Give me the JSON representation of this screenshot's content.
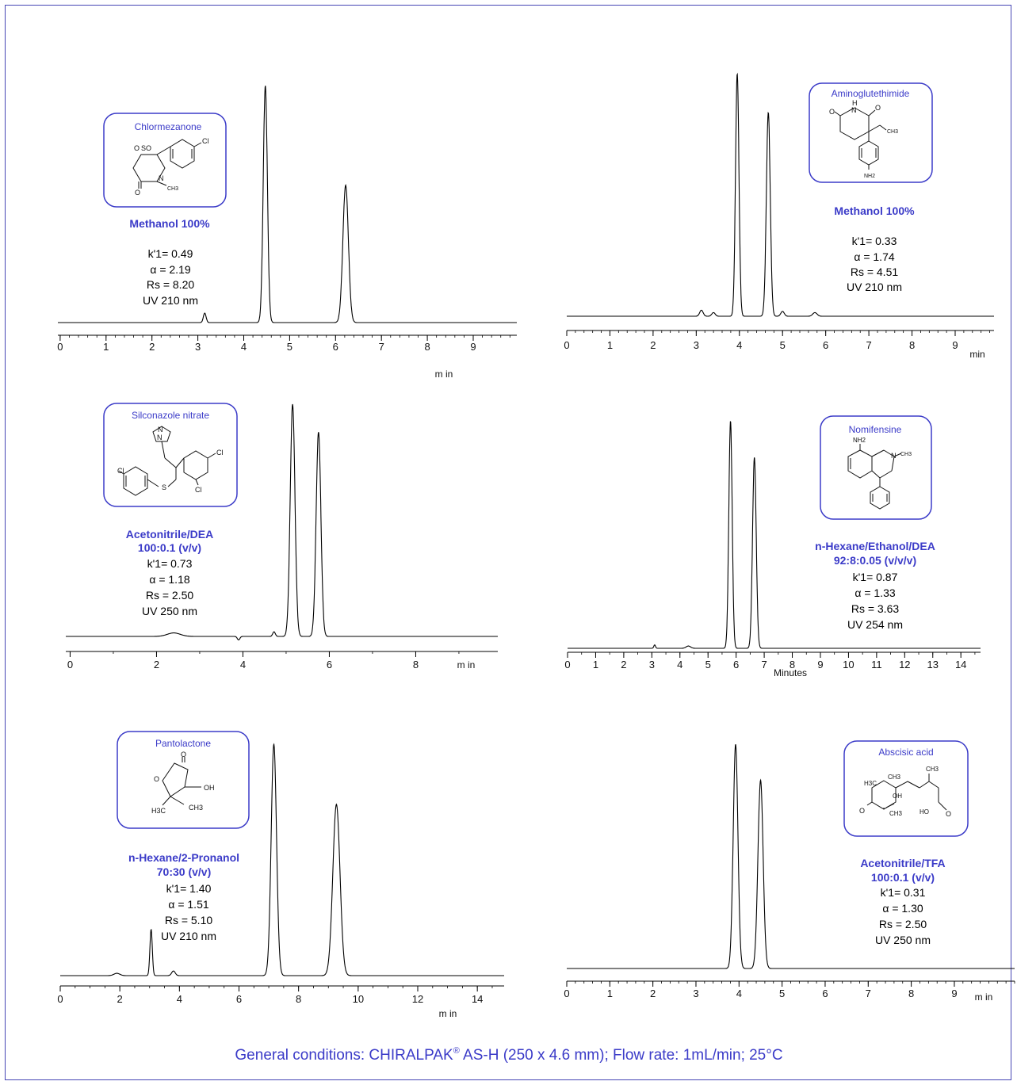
{
  "colors": {
    "frame": "#4646b4",
    "accent": "#3b3bc8",
    "trace": "#000000"
  },
  "footer": {
    "text": "General conditions:  CHIRALPAK",
    "reg": "®",
    "text2": " AS-H (250 x 4.6 mm); Flow rate: 1mL/min; 25°C"
  },
  "chart_data": [
    {
      "type": "line",
      "compound": "Chlormezanone",
      "eluent": [
        "Methanol 100%"
      ],
      "conditions": [
        "k'1= 0.49",
        "α = 2.19",
        "Rs = 8.20",
        "UV 210 nm"
      ],
      "xlim": [
        -0.05,
        9.95
      ],
      "xticks": [
        0,
        1,
        2,
        3,
        4,
        5,
        6,
        7,
        8,
        9
      ],
      "minor_step": 0.2,
      "xlabel": "m in",
      "peaks": [
        {
          "t": 3.15,
          "h": 0.04,
          "w": 0.03
        },
        {
          "t": 4.47,
          "h": 1.0,
          "w": 0.045
        },
        {
          "t": 6.22,
          "h": 0.58,
          "w": 0.06
        }
      ]
    },
    {
      "type": "line",
      "compound": "Aminoglutethimide",
      "eluent": [
        "Methanol 100%"
      ],
      "conditions": [
        "k'1= 0.33",
        "α = 1.74",
        "Rs = 4.51",
        "UV 210 nm"
      ],
      "xlim": [
        0,
        9.9
      ],
      "xticks": [
        0,
        1,
        2,
        3,
        4,
        5,
        6,
        7,
        8,
        9
      ],
      "minor_step": 0.2,
      "xlabel": "min",
      "peaks": [
        {
          "t": 3.12,
          "h": 0.025,
          "w": 0.04
        },
        {
          "t": 3.4,
          "h": 0.015,
          "w": 0.04
        },
        {
          "t": 3.95,
          "h": 1.0,
          "w": 0.04
        },
        {
          "t": 4.67,
          "h": 0.84,
          "w": 0.045
        },
        {
          "t": 5.0,
          "h": 0.02,
          "w": 0.04
        },
        {
          "t": 5.75,
          "h": 0.015,
          "w": 0.05
        }
      ]
    },
    {
      "type": "line",
      "compound": "Silconazole nitrate",
      "eluent": [
        "Acetonitrile/DEA",
        "100:0.1 (v/v)"
      ],
      "conditions": [
        "k'1= 0.73",
        "α = 1.18",
        "Rs = 2.50",
        "UV 250 nm"
      ],
      "xlim": [
        -0.1,
        9.9
      ],
      "xticks": [
        0,
        2,
        4,
        6,
        8
      ],
      "minor_step": 1,
      "xlabel": "m in",
      "peaks": [
        {
          "t": 2.4,
          "h": 0.015,
          "w": 0.15
        },
        {
          "t": 3.9,
          "h": -0.015,
          "w": 0.03
        },
        {
          "t": 4.72,
          "h": 0.02,
          "w": 0.03
        },
        {
          "t": 5.15,
          "h": 1.0,
          "w": 0.055
        },
        {
          "t": 5.75,
          "h": 0.88,
          "w": 0.055
        }
      ]
    },
    {
      "type": "line",
      "compound": "Nomifensine",
      "eluent": [
        "n-Hexane/Ethanol/DEA",
        "92:8:0.05 (v/v/v)"
      ],
      "conditions": [
        "k'1= 0.87",
        "α = 1.33",
        "Rs = 3.63",
        "UV 254 nm"
      ],
      "xlim": [
        0,
        14.7
      ],
      "xticks": [
        0,
        1,
        2,
        3,
        4,
        5,
        6,
        7,
        8,
        9,
        10,
        11,
        12,
        13,
        14
      ],
      "minor_step": 0.5,
      "xlabel": "Minutes",
      "peaks": [
        {
          "t": 3.1,
          "h": 0.015,
          "w": 0.03
        },
        {
          "t": 4.3,
          "h": 0.01,
          "w": 0.08
        },
        {
          "t": 5.8,
          "h": 1.0,
          "w": 0.06
        },
        {
          "t": 6.65,
          "h": 0.84,
          "w": 0.065
        }
      ]
    },
    {
      "type": "line",
      "compound": "Pantolactone",
      "eluent": [
        "n-Hexane/2-Pronanol",
        "70:30 (v/v)"
      ],
      "conditions": [
        "k'1= 1.40",
        "α = 1.51",
        "Rs = 5.10",
        "UV 210 nm"
      ],
      "xlim": [
        0,
        14.9
      ],
      "xticks": [
        0,
        2,
        4,
        6,
        8,
        10,
        12,
        14
      ],
      "minor_step": 0.5,
      "xlabel": "m in",
      "peaks": [
        {
          "t": 1.9,
          "h": 0.01,
          "w": 0.1
        },
        {
          "t": 3.05,
          "h": 0.2,
          "w": 0.04
        },
        {
          "t": 3.8,
          "h": 0.02,
          "w": 0.06
        },
        {
          "t": 7.17,
          "h": 1.0,
          "w": 0.09
        },
        {
          "t": 9.27,
          "h": 0.74,
          "w": 0.12
        }
      ]
    },
    {
      "type": "line",
      "compound": "Abscisic acid",
      "eluent": [
        "Acetonitrile/TFA",
        "100:0.1 (v/v)"
      ],
      "conditions": [
        "k'1= 0.31",
        "α = 1.30",
        "Rs = 2.50",
        "UV 250 nm"
      ],
      "xlim": [
        0,
        10.4
      ],
      "xticks": [
        0,
        1,
        2,
        3,
        4,
        5,
        6,
        7,
        8,
        9
      ],
      "minor_step": 0.2,
      "xlabel": "m in",
      "peaks": [
        {
          "t": 3.92,
          "h": 1.0,
          "w": 0.055
        },
        {
          "t": 4.5,
          "h": 0.84,
          "w": 0.06
        }
      ]
    }
  ]
}
